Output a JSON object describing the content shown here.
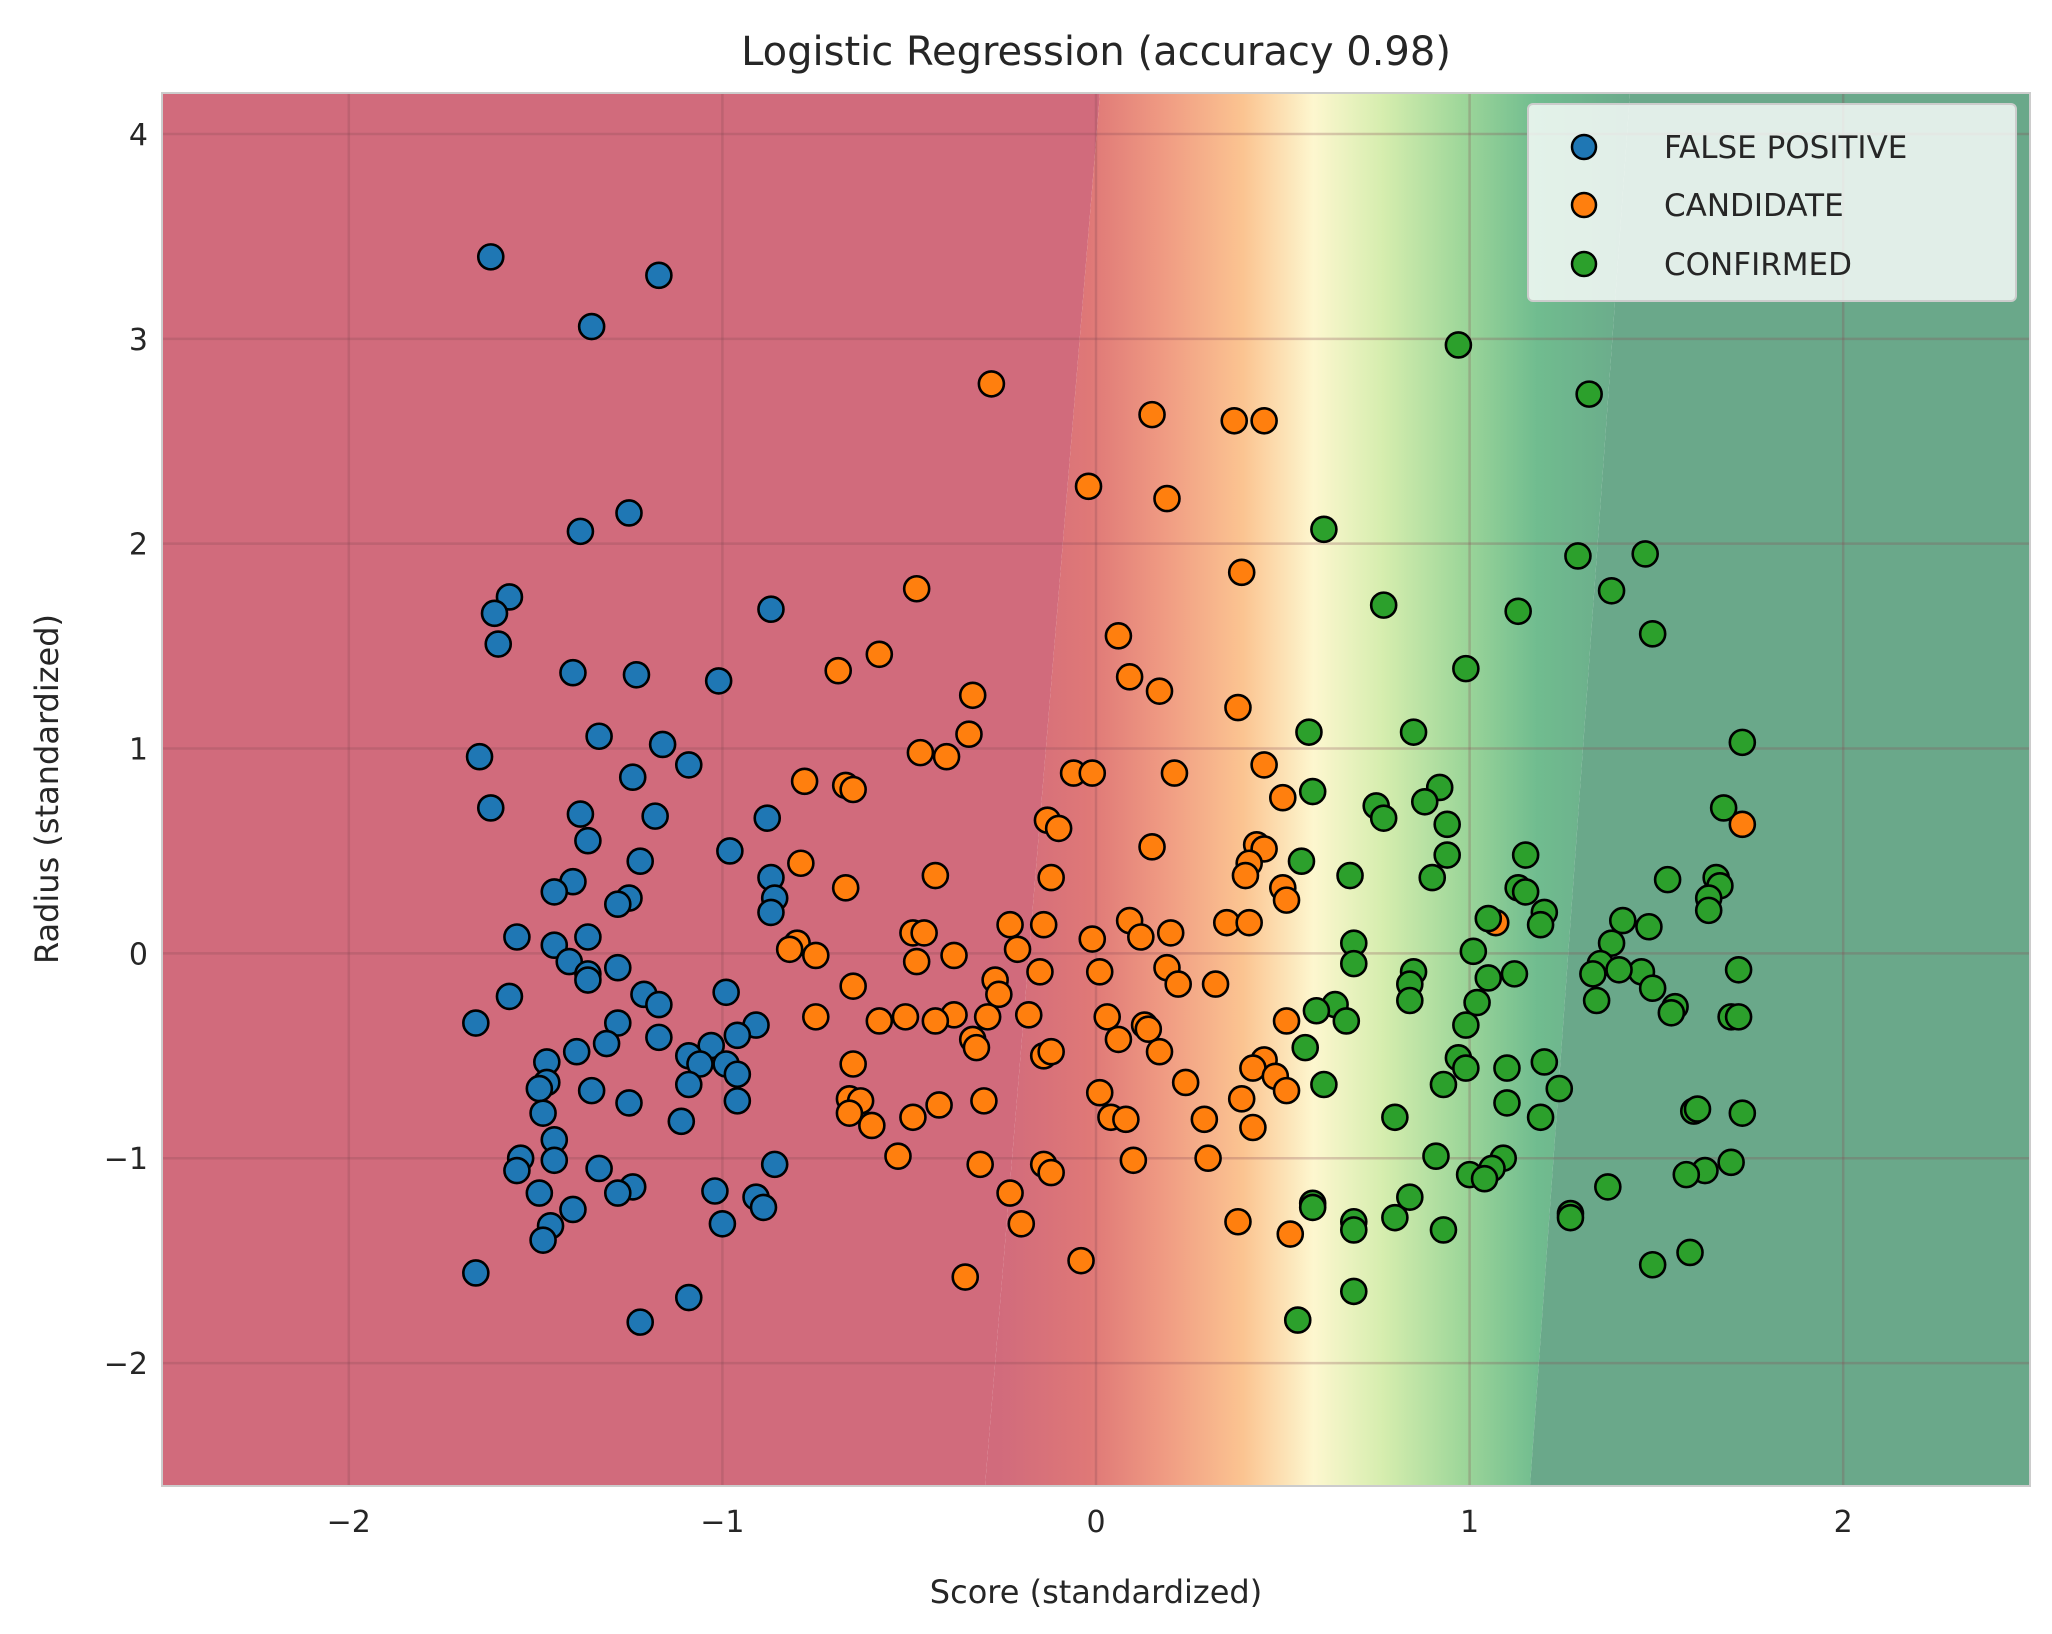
{
  "chart_data": {
    "type": "scatter",
    "title": "Logistic Regression (accuracy 0.98)",
    "xlabel": "Score (standardized)",
    "ylabel": "Radius (standardized)",
    "xlim": [
      -2.5,
      2.5
    ],
    "ylim": [
      -2.6,
      4.2
    ],
    "xticks": [
      -2,
      -1,
      0,
      1,
      2
    ],
    "yticks": [
      -2,
      -1,
      0,
      1,
      2,
      3,
      4
    ],
    "grid": true,
    "legend_position": "top-right",
    "background": "decision-region contour: red (FALSE POSITIVE) to yellow to green (CONFIRMED)",
    "series": [
      {
        "name": "FALSE POSITIVE",
        "color": "#1f77b4",
        "points": [
          [
            -1.62,
            3.4
          ],
          [
            -1.17,
            3.31
          ],
          [
            -1.35,
            3.06
          ],
          [
            -1.25,
            2.15
          ],
          [
            -1.38,
            2.06
          ],
          [
            -1.57,
            1.74
          ],
          [
            -1.61,
            1.66
          ],
          [
            -1.6,
            1.51
          ],
          [
            -0.87,
            1.68
          ],
          [
            -1.4,
            1.37
          ],
          [
            -1.23,
            1.36
          ],
          [
            -1.01,
            1.33
          ],
          [
            -1.33,
            1.06
          ],
          [
            -1.16,
            1.02
          ],
          [
            -1.65,
            0.96
          ],
          [
            -1.09,
            0.92
          ],
          [
            -1.24,
            0.86
          ],
          [
            -1.62,
            0.71
          ],
          [
            -1.38,
            0.68
          ],
          [
            -1.18,
            0.67
          ],
          [
            -0.88,
            0.66
          ],
          [
            -1.36,
            0.55
          ],
          [
            -0.98,
            0.5
          ],
          [
            -1.22,
            0.45
          ],
          [
            -1.4,
            0.35
          ],
          [
            -0.87,
            0.37
          ],
          [
            -1.45,
            0.3
          ],
          [
            -1.25,
            0.27
          ],
          [
            -1.28,
            0.24
          ],
          [
            -0.86,
            0.27
          ],
          [
            -0.87,
            0.2
          ],
          [
            -1.55,
            0.08
          ],
          [
            -1.45,
            0.04
          ],
          [
            -1.36,
            0.08
          ],
          [
            -1.41,
            -0.04
          ],
          [
            -1.28,
            -0.07
          ],
          [
            -1.36,
            -0.1
          ],
          [
            -1.36,
            -0.13
          ],
          [
            -1.21,
            -0.2
          ],
          [
            -0.99,
            -0.19
          ],
          [
            -1.57,
            -0.21
          ],
          [
            -1.17,
            -0.25
          ],
          [
            -1.66,
            -0.34
          ],
          [
            -1.28,
            -0.34
          ],
          [
            -0.91,
            -0.35
          ],
          [
            -0.96,
            -0.4
          ],
          [
            -1.17,
            -0.41
          ],
          [
            -1.31,
            -0.44
          ],
          [
            -1.03,
            -0.45
          ],
          [
            -1.39,
            -0.48
          ],
          [
            -1.09,
            -0.5
          ],
          [
            -1.47,
            -0.53
          ],
          [
            -1.06,
            -0.54
          ],
          [
            -0.99,
            -0.54
          ],
          [
            -0.96,
            -0.59
          ],
          [
            -1.47,
            -0.63
          ],
          [
            -1.09,
            -0.64
          ],
          [
            -1.49,
            -0.66
          ],
          [
            -1.35,
            -0.67
          ],
          [
            -0.96,
            -0.72
          ],
          [
            -1.25,
            -0.73
          ],
          [
            -1.48,
            -0.78
          ],
          [
            -1.11,
            -0.82
          ],
          [
            -1.45,
            -0.91
          ],
          [
            -1.54,
            -1.0
          ],
          [
            -1.45,
            -1.01
          ],
          [
            -0.86,
            -1.03
          ],
          [
            -1.33,
            -1.05
          ],
          [
            -1.55,
            -1.06
          ],
          [
            -1.02,
            -1.16
          ],
          [
            -1.24,
            -1.14
          ],
          [
            -1.28,
            -1.17
          ],
          [
            -1.49,
            -1.17
          ],
          [
            -0.91,
            -1.19
          ],
          [
            -0.89,
            -1.24
          ],
          [
            -1.4,
            -1.25
          ],
          [
            -1.46,
            -1.33
          ],
          [
            -1.0,
            -1.32
          ],
          [
            -1.48,
            -1.4
          ],
          [
            -1.66,
            -1.56
          ],
          [
            -1.09,
            -1.68
          ],
          [
            -1.22,
            -1.8
          ]
        ]
      },
      {
        "name": "CANDIDATE",
        "color": "#ff7f0e",
        "points": [
          [
            -0.28,
            2.78
          ],
          [
            0.15,
            2.63
          ],
          [
            0.37,
            2.6
          ],
          [
            0.45,
            2.6
          ],
          [
            -0.02,
            2.28
          ],
          [
            0.19,
            2.22
          ],
          [
            0.39,
            1.86
          ],
          [
            -0.48,
            1.78
          ],
          [
            0.06,
            1.55
          ],
          [
            -0.58,
            1.46
          ],
          [
            -0.69,
            1.38
          ],
          [
            0.09,
            1.35
          ],
          [
            0.17,
            1.28
          ],
          [
            -0.33,
            1.26
          ],
          [
            0.38,
            1.2
          ],
          [
            -0.34,
            1.07
          ],
          [
            -0.47,
            0.98
          ],
          [
            -0.4,
            0.96
          ],
          [
            0.45,
            0.92
          ],
          [
            -0.06,
            0.88
          ],
          [
            -0.01,
            0.88
          ],
          [
            0.21,
            0.88
          ],
          [
            -0.78,
            0.84
          ],
          [
            -0.67,
            0.82
          ],
          [
            -0.65,
            0.8
          ],
          [
            0.5,
            0.76
          ],
          [
            -0.13,
            0.65
          ],
          [
            -0.1,
            0.61
          ],
          [
            0.43,
            0.53
          ],
          [
            0.45,
            0.51
          ],
          [
            0.15,
            0.52
          ],
          [
            0.41,
            0.44
          ],
          [
            -0.79,
            0.44
          ],
          [
            0.4,
            0.38
          ],
          [
            -0.43,
            0.38
          ],
          [
            -0.12,
            0.37
          ],
          [
            0.5,
            0.32
          ],
          [
            -0.67,
            0.32
          ],
          [
            0.51,
            0.26
          ],
          [
            0.09,
            0.16
          ],
          [
            0.35,
            0.15
          ],
          [
            0.41,
            0.15
          ],
          [
            -0.23,
            0.14
          ],
          [
            -0.14,
            0.14
          ],
          [
            -0.49,
            0.1
          ],
          [
            -0.46,
            0.1
          ],
          [
            0.12,
            0.08
          ],
          [
            0.2,
            0.1
          ],
          [
            -0.01,
            0.07
          ],
          [
            -0.8,
            0.05
          ],
          [
            -0.82,
            0.02
          ],
          [
            -0.21,
            0.02
          ],
          [
            -0.75,
            -0.01
          ],
          [
            -0.38,
            -0.01
          ],
          [
            -0.48,
            -0.04
          ],
          [
            0.19,
            -0.07
          ],
          [
            0.01,
            -0.09
          ],
          [
            -0.15,
            -0.09
          ],
          [
            -0.27,
            -0.13
          ],
          [
            0.22,
            -0.15
          ],
          [
            -0.65,
            -0.16
          ],
          [
            0.32,
            -0.15
          ],
          [
            -0.26,
            -0.2
          ],
          [
            -0.38,
            -0.3
          ],
          [
            -0.29,
            -0.31
          ],
          [
            -0.75,
            -0.31
          ],
          [
            -0.51,
            -0.31
          ],
          [
            -0.18,
            -0.3
          ],
          [
            0.03,
            -0.31
          ],
          [
            -0.58,
            -0.33
          ],
          [
            -0.43,
            -0.33
          ],
          [
            0.13,
            -0.35
          ],
          [
            0.14,
            -0.37
          ],
          [
            0.51,
            -0.33
          ],
          [
            0.06,
            -0.42
          ],
          [
            -0.33,
            -0.42
          ],
          [
            -0.32,
            -0.46
          ],
          [
            0.17,
            -0.48
          ],
          [
            -0.14,
            -0.5
          ],
          [
            -0.12,
            -0.48
          ],
          [
            0.45,
            -0.52
          ],
          [
            0.42,
            -0.56
          ],
          [
            -0.65,
            -0.54
          ],
          [
            0.48,
            -0.6
          ],
          [
            0.24,
            -0.63
          ],
          [
            0.51,
            -0.67
          ],
          [
            0.01,
            -0.68
          ],
          [
            -0.66,
            -0.71
          ],
          [
            0.39,
            -0.71
          ],
          [
            -0.3,
            -0.72
          ],
          [
            -0.63,
            -0.72
          ],
          [
            -0.42,
            -0.74
          ],
          [
            -0.66,
            -0.78
          ],
          [
            0.04,
            -0.8
          ],
          [
            0.08,
            -0.81
          ],
          [
            -0.49,
            -0.8
          ],
          [
            0.29,
            -0.81
          ],
          [
            -0.6,
            -0.84
          ],
          [
            0.42,
            -0.85
          ],
          [
            -0.53,
            -0.99
          ],
          [
            0.3,
            -1.0
          ],
          [
            0.1,
            -1.01
          ],
          [
            -0.31,
            -1.03
          ],
          [
            -0.14,
            -1.03
          ],
          [
            -0.12,
            -1.07
          ],
          [
            -0.23,
            -1.17
          ],
          [
            0.38,
            -1.31
          ],
          [
            -0.2,
            -1.32
          ],
          [
            0.52,
            -1.37
          ],
          [
            -0.04,
            -1.5
          ],
          [
            -0.35,
            -1.58
          ],
          [
            1.07,
            0.15
          ],
          [
            1.73,
            0.63
          ]
        ]
      },
      {
        "name": "CONFIRMED",
        "color": "#2ca02c",
        "points": [
          [
            0.97,
            2.97
          ],
          [
            1.32,
            2.73
          ],
          [
            0.61,
            2.07
          ],
          [
            1.29,
            1.94
          ],
          [
            1.47,
            1.95
          ],
          [
            1.38,
            1.77
          ],
          [
            0.77,
            1.7
          ],
          [
            1.13,
            1.67
          ],
          [
            1.49,
            1.56
          ],
          [
            0.99,
            1.39
          ],
          [
            0.57,
            1.08
          ],
          [
            0.85,
            1.08
          ],
          [
            1.73,
            1.03
          ],
          [
            0.92,
            0.81
          ],
          [
            0.58,
            0.79
          ],
          [
            0.88,
            0.74
          ],
          [
            0.75,
            0.72
          ],
          [
            1.68,
            0.71
          ],
          [
            0.77,
            0.66
          ],
          [
            0.94,
            0.63
          ],
          [
            0.94,
            0.48
          ],
          [
            1.15,
            0.48
          ],
          [
            0.55,
            0.45
          ],
          [
            1.66,
            0.37
          ],
          [
            0.68,
            0.38
          ],
          [
            0.9,
            0.37
          ],
          [
            1.53,
            0.36
          ],
          [
            1.13,
            0.32
          ],
          [
            1.15,
            0.3
          ],
          [
            1.67,
            0.33
          ],
          [
            1.64,
            0.27
          ],
          [
            1.64,
            0.21
          ],
          [
            1.2,
            0.2
          ],
          [
            1.41,
            0.16
          ],
          [
            1.05,
            0.17
          ],
          [
            1.19,
            0.14
          ],
          [
            1.48,
            0.13
          ],
          [
            1.38,
            0.05
          ],
          [
            0.69,
            0.05
          ],
          [
            1.01,
            0.01
          ],
          [
            1.35,
            -0.05
          ],
          [
            0.69,
            -0.05
          ],
          [
            1.46,
            -0.09
          ],
          [
            1.72,
            -0.08
          ],
          [
            1.12,
            -0.1
          ],
          [
            1.4,
            -0.08
          ],
          [
            1.05,
            -0.12
          ],
          [
            1.33,
            -0.1
          ],
          [
            0.85,
            -0.09
          ],
          [
            0.84,
            -0.15
          ],
          [
            1.49,
            -0.17
          ],
          [
            1.34,
            -0.23
          ],
          [
            0.84,
            -0.23
          ],
          [
            1.02,
            -0.24
          ],
          [
            1.55,
            -0.26
          ],
          [
            0.64,
            -0.25
          ],
          [
            0.59,
            -0.28
          ],
          [
            1.54,
            -0.29
          ],
          [
            1.7,
            -0.31
          ],
          [
            1.72,
            -0.31
          ],
          [
            0.67,
            -0.33
          ],
          [
            0.99,
            -0.35
          ],
          [
            0.56,
            -0.46
          ],
          [
            0.97,
            -0.51
          ],
          [
            1.2,
            -0.53
          ],
          [
            0.99,
            -0.56
          ],
          [
            1.1,
            -0.56
          ],
          [
            0.61,
            -0.64
          ],
          [
            0.93,
            -0.64
          ],
          [
            1.24,
            -0.66
          ],
          [
            1.1,
            -0.73
          ],
          [
            1.6,
            -0.77
          ],
          [
            1.61,
            -0.76
          ],
          [
            1.73,
            -0.78
          ],
          [
            1.19,
            -0.8
          ],
          [
            0.8,
            -0.8
          ],
          [
            0.91,
            -0.99
          ],
          [
            1.09,
            -1.0
          ],
          [
            1.7,
            -1.02
          ],
          [
            1.06,
            -1.05
          ],
          [
            1.63,
            -1.06
          ],
          [
            1.58,
            -1.08
          ],
          [
            1.0,
            -1.08
          ],
          [
            1.04,
            -1.1
          ],
          [
            1.37,
            -1.14
          ],
          [
            0.84,
            -1.19
          ],
          [
            0.58,
            -1.22
          ],
          [
            0.58,
            -1.24
          ],
          [
            1.27,
            -1.27
          ],
          [
            1.27,
            -1.29
          ],
          [
            0.8,
            -1.29
          ],
          [
            0.69,
            -1.31
          ],
          [
            0.69,
            -1.35
          ],
          [
            0.93,
            -1.35
          ],
          [
            1.59,
            -1.46
          ],
          [
            1.49,
            -1.52
          ],
          [
            0.69,
            -1.65
          ],
          [
            0.54,
            -1.79
          ]
        ]
      }
    ]
  },
  "colors": {
    "fp_region": "#d16b7c",
    "fp_point": "#1f77b4",
    "candidate_point": "#ff7f0e",
    "confirmed_point": "#2ca02c",
    "confirmed_region": "#6aa88a"
  }
}
